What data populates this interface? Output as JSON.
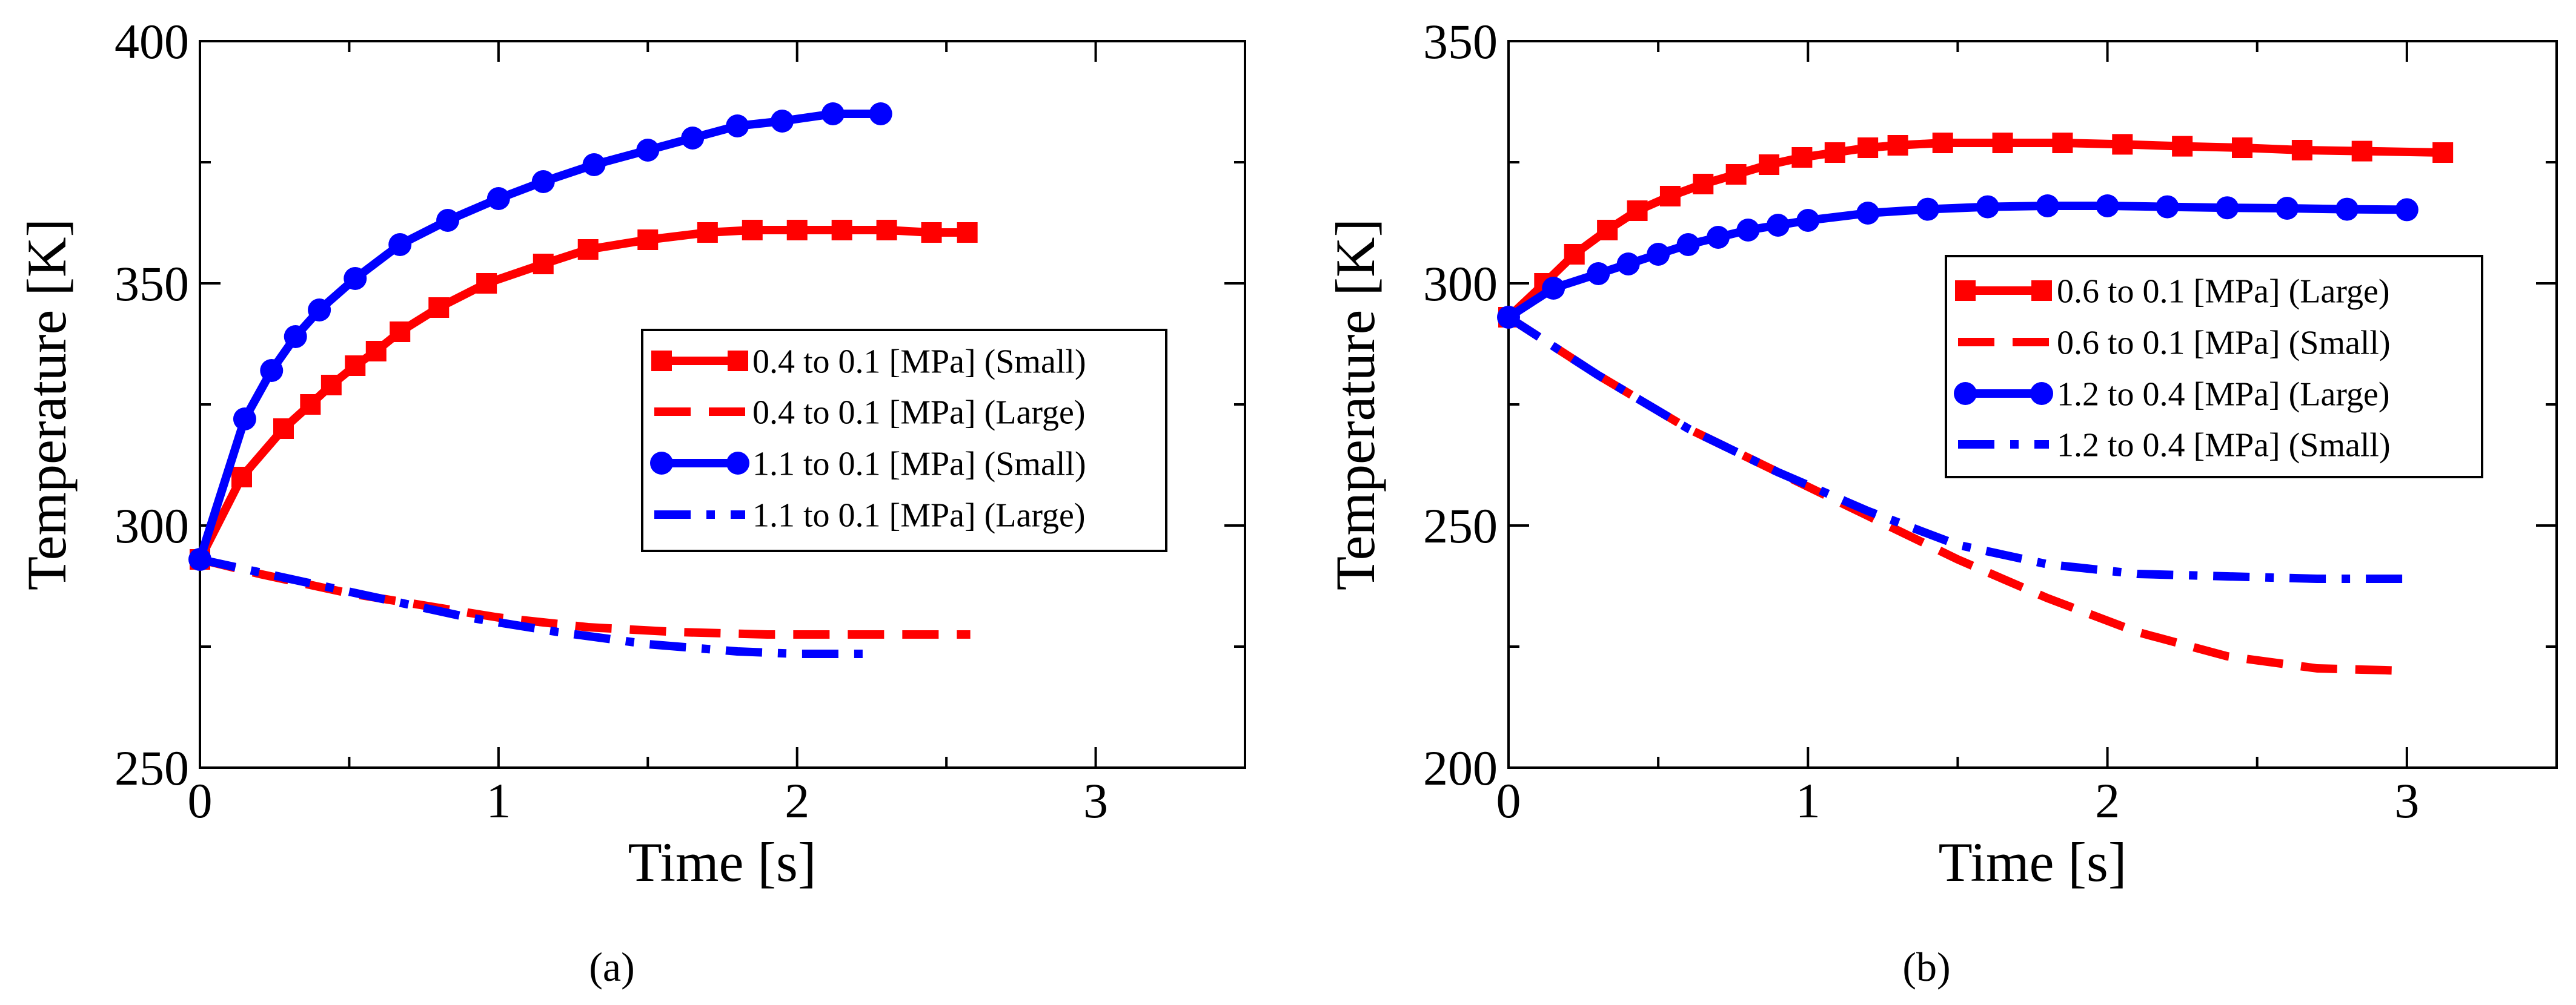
{
  "chart_data": [
    {
      "type": "line",
      "panel_label": "(a)",
      "xlabel": "Time [s]",
      "ylabel": "Temperature [K]",
      "xlim": [
        0,
        3.5
      ],
      "ylim": [
        250,
        400
      ],
      "xticks": [
        0,
        1,
        2,
        3
      ],
      "yticks": [
        250,
        300,
        350,
        400
      ],
      "legend_position": "center-right",
      "series": [
        {
          "name": "0.4 to 0.1 [MPa] (Small)",
          "color": "#ff0000",
          "style": "solid-square",
          "x": [
            0,
            0.14,
            0.28,
            0.37,
            0.44,
            0.52,
            0.59,
            0.67,
            0.8,
            0.96,
            1.15,
            1.3,
            1.5,
            1.7,
            1.85,
            2.0,
            2.15,
            2.3,
            2.45,
            2.57
          ],
          "y": [
            293,
            310,
            320,
            325,
            329,
            333,
            336,
            340,
            345,
            350,
            354,
            357,
            359,
            360.5,
            361,
            361,
            361,
            361,
            360.5,
            360.5
          ]
        },
        {
          "name": "0.4 to 0.1 [MPa] (Large)",
          "color": "#ff0000",
          "style": "dashed",
          "x": [
            0,
            0.2,
            0.5,
            0.8,
            1.0,
            1.3,
            1.6,
            1.9,
            2.2,
            2.58
          ],
          "y": [
            293,
            290,
            286,
            283,
            281,
            279,
            278,
            277.5,
            277.5,
            277.5
          ]
        },
        {
          "name": "1.1 to 0.1 [MPa] (Small)",
          "color": "#0000ff",
          "style": "solid-circle",
          "x": [
            0,
            0.15,
            0.24,
            0.32,
            0.4,
            0.52,
            0.67,
            0.83,
            1.0,
            1.15,
            1.32,
            1.5,
            1.65,
            1.8,
            1.95,
            2.12,
            2.28
          ],
          "y": [
            293,
            322,
            332,
            339,
            344.5,
            351,
            358,
            363,
            367.5,
            371,
            374.5,
            377.5,
            380,
            382.5,
            383.5,
            385,
            385
          ]
        },
        {
          "name": "1.1 to 0.1 [MPa] (Large)",
          "color": "#0000ff",
          "style": "dash-dot",
          "x": [
            0,
            0.3,
            0.6,
            0.9,
            1.2,
            1.5,
            1.8,
            2.0,
            2.25
          ],
          "y": [
            293,
            289,
            285,
            281,
            278,
            275.5,
            274,
            273.5,
            273.5
          ]
        }
      ]
    },
    {
      "type": "line",
      "panel_label": "(b)",
      "xlabel": "Time [s]",
      "ylabel": "Temperature [K]",
      "xlim": [
        0,
        3.5
      ],
      "ylim": [
        200,
        350
      ],
      "xticks": [
        0,
        1,
        2,
        3
      ],
      "yticks": [
        200,
        250,
        300,
        350
      ],
      "legend_position": "upper-right",
      "series": [
        {
          "name": "0.6 to 0.1 [MPa] (Large)",
          "color": "#ff0000",
          "style": "solid-square",
          "x": [
            0,
            0.12,
            0.22,
            0.33,
            0.43,
            0.54,
            0.65,
            0.76,
            0.87,
            0.98,
            1.09,
            1.2,
            1.3,
            1.45,
            1.65,
            1.85,
            2.05,
            2.25,
            2.45,
            2.65,
            2.85,
            3.12
          ],
          "y": [
            293,
            300,
            306,
            311,
            315,
            318,
            320.5,
            322.5,
            324.5,
            326,
            327,
            328,
            328.5,
            329,
            329,
            329,
            328.7,
            328.3,
            328,
            327.5,
            327.3,
            327
          ]
        },
        {
          "name": "0.6 to 0.1 [MPa] (Small)",
          "color": "#ff0000",
          "style": "dashed",
          "x": [
            0,
            0.3,
            0.6,
            0.9,
            1.2,
            1.5,
            1.8,
            2.1,
            2.4,
            2.7,
            3.0
          ],
          "y": [
            293,
            281,
            270,
            261,
            252,
            243,
            235,
            228,
            223,
            220.5,
            220
          ]
        },
        {
          "name": "1.2 to 0.4 [MPa] (Large)",
          "color": "#0000ff",
          "style": "solid-circle",
          "x": [
            0,
            0.15,
            0.3,
            0.4,
            0.5,
            0.6,
            0.7,
            0.8,
            0.9,
            1.0,
            1.2,
            1.4,
            1.6,
            1.8,
            2.0,
            2.2,
            2.4,
            2.6,
            2.8,
            3.0
          ],
          "y": [
            293,
            299,
            302,
            304,
            306,
            308,
            309.5,
            311,
            312,
            313,
            314.5,
            315.3,
            315.8,
            316,
            316,
            315.8,
            315.6,
            315.5,
            315.3,
            315.2
          ]
        },
        {
          "name": "1.2 to 0.4 [MPa] (Small)",
          "color": "#0000ff",
          "style": "dash-dot",
          "x": [
            0,
            0.3,
            0.6,
            0.9,
            1.2,
            1.5,
            1.8,
            2.1,
            2.4,
            2.7,
            3.0
          ],
          "y": [
            293,
            281,
            270,
            261,
            253,
            246,
            242,
            240,
            239.5,
            239,
            239
          ]
        }
      ]
    }
  ]
}
